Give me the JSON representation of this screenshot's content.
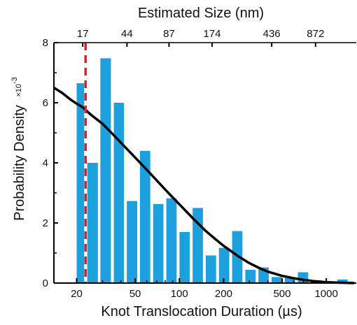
{
  "chart_data": {
    "type": "bar",
    "x_scale": "log",
    "xlabel": "Knot Translocation Duration (µs)",
    "top_xlabel": "Estimated Size (nm)",
    "ylabel": "Probability Density",
    "ylabel_multiplier": "×10",
    "ylabel_exponent": "-3",
    "xlim": [
      14,
      1600
    ],
    "ylim": [
      0,
      8
    ],
    "x_ticks": [
      20,
      50,
      100,
      200,
      500,
      1000
    ],
    "x_tick_labels": [
      "20",
      "50",
      "100",
      "200",
      "500",
      "1000"
    ],
    "y_ticks": [
      0,
      2,
      4,
      6,
      8
    ],
    "y_tick_labels": [
      "0",
      "2",
      "4",
      "6",
      "8"
    ],
    "top_ticks": [
      {
        "x": 22,
        "label": "17"
      },
      {
        "x": 44,
        "label": "44"
      },
      {
        "x": 85,
        "label": "87"
      },
      {
        "x": 167,
        "label": "174"
      },
      {
        "x": 425,
        "label": "436"
      },
      {
        "x": 845,
        "label": "872"
      }
    ],
    "bars": [
      {
        "x0": 20.0,
        "x1": 22.5,
        "value": 6.65
      },
      {
        "x0": 23.6,
        "x1": 27.9,
        "value": 4.0
      },
      {
        "x0": 29.0,
        "x1": 34.2,
        "value": 7.48
      },
      {
        "x0": 35.8,
        "x1": 42.0,
        "value": 6.0
      },
      {
        "x0": 43.9,
        "x1": 51.7,
        "value": 2.73
      },
      {
        "x0": 53.9,
        "x1": 63.4,
        "value": 4.4
      },
      {
        "x0": 66.3,
        "x1": 77.9,
        "value": 2.63
      },
      {
        "x0": 81.5,
        "x1": 95.8,
        "value": 2.82
      },
      {
        "x0": 100.2,
        "x1": 117.7,
        "value": 1.7
      },
      {
        "x0": 123.1,
        "x1": 144.7,
        "value": 2.5
      },
      {
        "x0": 151.3,
        "x1": 177.8,
        "value": 0.92
      },
      {
        "x0": 185.9,
        "x1": 218.6,
        "value": 1.17
      },
      {
        "x0": 228.5,
        "x1": 268.6,
        "value": 1.73
      },
      {
        "x0": 280.9,
        "x1": 330.1,
        "value": 0.44
      },
      {
        "x0": 345.2,
        "x1": 405.8,
        "value": 0.52
      },
      {
        "x0": 424.2,
        "x1": 498.7,
        "value": 0.2
      },
      {
        "x0": 521.4,
        "x1": 612.9,
        "value": 0.17
      },
      {
        "x0": 640.8,
        "x1": 753.2,
        "value": 0.36
      },
      {
        "x0": 787.5,
        "x1": 925.6,
        "value": 0.08
      },
      {
        "x0": 967.9,
        "x1": 1137.6,
        "value": 0.05
      },
      {
        "x0": 1189.5,
        "x1": 1398.0,
        "value": 0.12
      }
    ],
    "fit_curve": [
      [
        14,
        6.5
      ],
      [
        16,
        6.32
      ],
      [
        18,
        6.12
      ],
      [
        20,
        5.97
      ],
      [
        22,
        5.85
      ],
      [
        25,
        5.6
      ],
      [
        30,
        5.3
      ],
      [
        35,
        4.97
      ],
      [
        40,
        4.67
      ],
      [
        50,
        4.18
      ],
      [
        60,
        3.77
      ],
      [
        70,
        3.42
      ],
      [
        85,
        2.98
      ],
      [
        100,
        2.62
      ],
      [
        125,
        2.13
      ],
      [
        150,
        1.75
      ],
      [
        175,
        1.47
      ],
      [
        200,
        1.24
      ],
      [
        250,
        0.9
      ],
      [
        300,
        0.66
      ],
      [
        350,
        0.5
      ],
      [
        400,
        0.38
      ],
      [
        500,
        0.24
      ],
      [
        600,
        0.16
      ],
      [
        700,
        0.11
      ],
      [
        800,
        0.07
      ],
      [
        1000,
        0.03
      ],
      [
        1200,
        0.015
      ],
      [
        1400,
        0.005
      ],
      [
        1550,
        0.0
      ]
    ],
    "threshold_line": {
      "x": 23,
      "style": "dashed"
    },
    "colors": {
      "bars": "#1ca0de",
      "fit_curve": "#000000",
      "threshold_line": "#e21e26",
      "axes": "#000000"
    }
  }
}
